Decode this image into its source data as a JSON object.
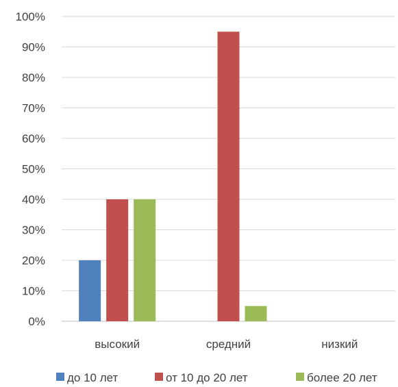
{
  "chart_data": {
    "type": "bar",
    "categories": [
      "высокий",
      "средний",
      "низкий"
    ],
    "series": [
      {
        "name": "до 10 лет",
        "color": "#4F81BD",
        "values": [
          20,
          0,
          0
        ]
      },
      {
        "name": "от 10 до 20 лет",
        "color": "#C0504D",
        "values": [
          40,
          95,
          0
        ]
      },
      {
        "name": "более 20 лет",
        "color": "#9BBB59",
        "values": [
          40,
          5,
          0
        ]
      }
    ],
    "y_ticks": [
      "0%",
      "10%",
      "20%",
      "30%",
      "40%",
      "50%",
      "60%",
      "70%",
      "80%",
      "90%",
      "100%"
    ],
    "ylim": [
      0,
      100
    ],
    "y_unit": "%",
    "grid": true,
    "legend_position": "bottom"
  }
}
